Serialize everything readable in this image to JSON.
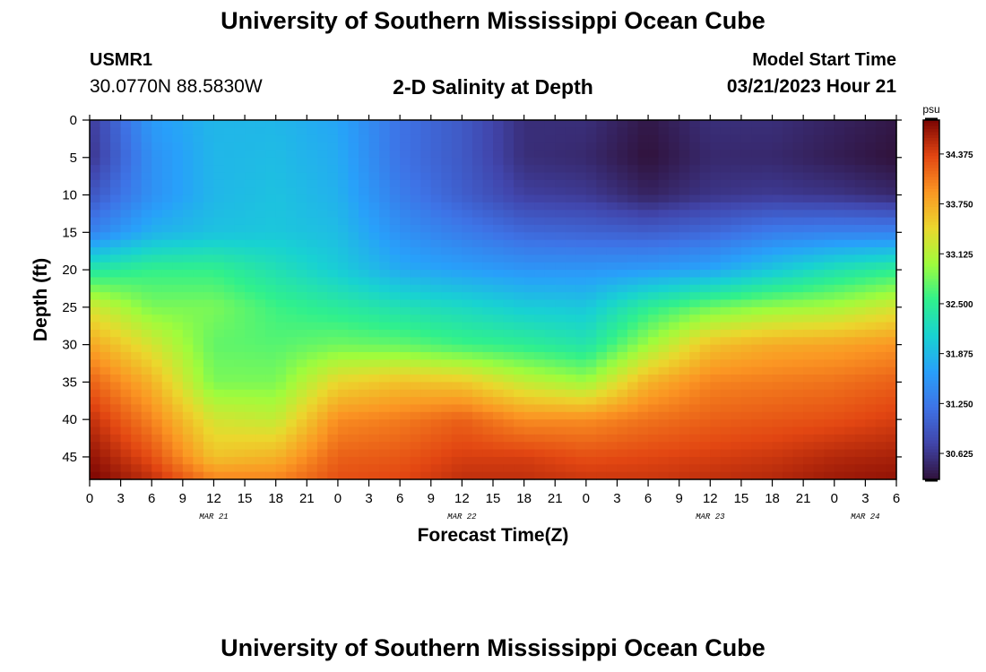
{
  "header": {
    "title": "University of Southern Mississippi Ocean Cube",
    "station_id": "USMR1",
    "station_coords": "30.0770N  88.5830W",
    "plot_title": "2-D Salinity at Depth",
    "model_start_label": "Model Start Time",
    "model_start_value": "03/21/2023 Hour 21"
  },
  "footer": {
    "title": "University of Southern Mississippi Ocean Cube"
  },
  "chart_data": {
    "type": "heatmap",
    "title": "2-D Salinity at Depth",
    "xlabel": "Forecast Time(Z)",
    "ylabel": "Depth (ft)",
    "x_tick_labels": [
      "0",
      "3",
      "6",
      "9",
      "12",
      "15",
      "18",
      "21",
      "0",
      "3",
      "6",
      "9",
      "12",
      "15",
      "18",
      "21",
      "0",
      "3",
      "6",
      "9",
      "12",
      "15",
      "18",
      "21",
      "0",
      "3",
      "6"
    ],
    "x_date_labels": [
      {
        "label": "MAR 21",
        "hour": 12
      },
      {
        "label": "MAR 22",
        "hour": 36
      },
      {
        "label": "MAR 23",
        "hour": 60
      },
      {
        "label": "MAR 24",
        "hour": 75
      }
    ],
    "xlim_hours": [
      0,
      78
    ],
    "y_ticks": [
      0,
      5,
      10,
      15,
      20,
      25,
      30,
      35,
      40,
      45
    ],
    "ylim": [
      0,
      48
    ],
    "y_inverted": true,
    "colorbar": {
      "unit": "psu",
      "ticks": [
        "34.375",
        "33.750",
        "33.125",
        "32.500",
        "31.875",
        "31.250",
        "30.625"
      ],
      "range": [
        30.3,
        34.8
      ],
      "colormap": "turbo"
    },
    "time_hours": [
      0,
      6,
      12,
      18,
      24,
      30,
      36,
      42,
      48,
      54,
      60,
      66,
      72,
      78
    ],
    "depth_ft": [
      0,
      5,
      10,
      15,
      20,
      25,
      30,
      35,
      40,
      45,
      48
    ],
    "salinity_psu": [
      [
        30.65,
        31.6,
        31.85,
        31.85,
        31.7,
        31.2,
        30.95,
        30.55,
        30.55,
        30.35,
        30.55,
        30.55,
        30.45,
        30.35
      ],
      [
        30.6,
        31.5,
        31.85,
        31.9,
        31.75,
        31.2,
        30.95,
        30.55,
        30.5,
        30.3,
        30.5,
        30.5,
        30.4,
        30.3
      ],
      [
        30.9,
        31.5,
        31.85,
        31.95,
        31.8,
        31.3,
        31.0,
        30.7,
        30.65,
        30.45,
        30.6,
        30.65,
        30.6,
        30.5
      ],
      [
        31.35,
        31.8,
        31.95,
        32.0,
        31.9,
        31.5,
        31.3,
        31.1,
        31.05,
        31.0,
        31.1,
        31.3,
        31.35,
        31.35
      ],
      [
        32.4,
        32.55,
        32.55,
        32.3,
        32.05,
        31.75,
        31.65,
        31.55,
        31.55,
        31.6,
        31.7,
        32.0,
        32.3,
        32.5
      ],
      [
        33.3,
        32.85,
        32.85,
        32.6,
        32.45,
        32.3,
        32.2,
        32.05,
        32.0,
        32.5,
        32.8,
        32.95,
        33.05,
        33.3
      ],
      [
        33.8,
        33.3,
        32.75,
        32.7,
        32.8,
        32.75,
        32.6,
        32.5,
        32.35,
        33.0,
        33.6,
        33.75,
        33.8,
        33.9
      ],
      [
        34.2,
        33.7,
        32.85,
        32.85,
        33.45,
        33.6,
        33.55,
        33.2,
        33.0,
        33.7,
        34.0,
        34.05,
        34.1,
        34.2
      ],
      [
        34.5,
        34.0,
        33.3,
        33.2,
        33.95,
        34.05,
        34.2,
        33.95,
        33.95,
        34.1,
        34.2,
        34.25,
        34.3,
        34.4
      ],
      [
        34.7,
        34.3,
        33.6,
        33.7,
        34.2,
        34.25,
        34.4,
        34.4,
        34.3,
        34.35,
        34.4,
        34.45,
        34.55,
        34.6
      ],
      [
        34.8,
        34.5,
        34.0,
        34.0,
        34.3,
        34.35,
        34.5,
        34.5,
        34.45,
        34.45,
        34.5,
        34.55,
        34.65,
        34.7
      ]
    ]
  }
}
